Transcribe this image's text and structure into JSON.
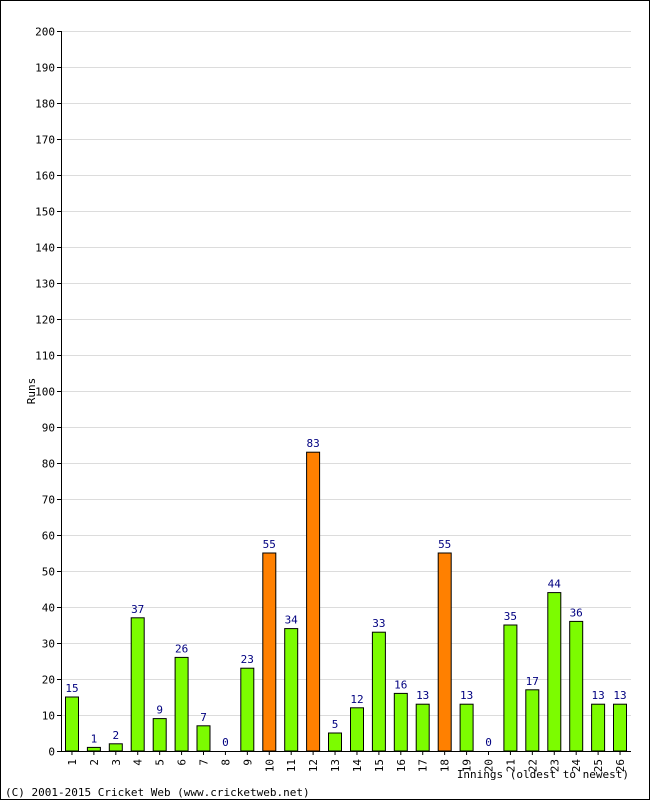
{
  "chart_data": {
    "type": "bar",
    "title": "",
    "xlabel": "Innings (oldest to newest)",
    "ylabel": "Runs",
    "ylim": [
      0,
      200
    ],
    "y_ticks": [
      0,
      10,
      20,
      30,
      40,
      50,
      60,
      70,
      80,
      90,
      100,
      110,
      120,
      130,
      140,
      150,
      160,
      170,
      180,
      190,
      200
    ],
    "grid": true,
    "categories": [
      "1",
      "2",
      "3",
      "4",
      "5",
      "6",
      "7",
      "8",
      "9",
      "10",
      "11",
      "12",
      "13",
      "14",
      "15",
      "16",
      "17",
      "18",
      "19",
      "20",
      "21",
      "22",
      "23",
      "24",
      "25",
      "26"
    ],
    "values": [
      15,
      1,
      2,
      37,
      9,
      26,
      7,
      0,
      23,
      55,
      34,
      83,
      5,
      12,
      33,
      16,
      13,
      55,
      13,
      0,
      35,
      17,
      44,
      36,
      13,
      13
    ],
    "bar_colors": {
      "normal": "#7cfc00",
      "fifty_plus": "#ff8000"
    },
    "data_label_color": "#000080"
  },
  "copyright": "(C) 2001-2015 Cricket Web (www.cricketweb.net)"
}
